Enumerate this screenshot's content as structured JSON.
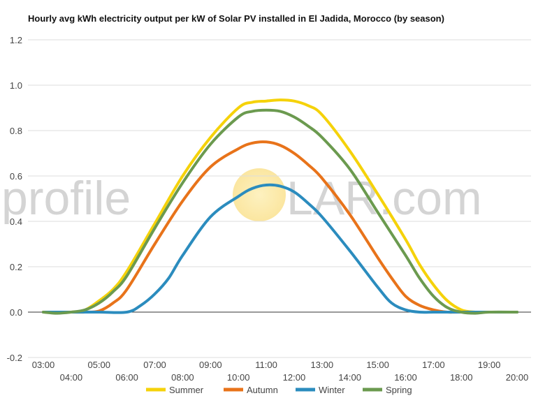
{
  "chart_data": {
    "type": "line",
    "title": "Hourly avg kWh electricity output per kW of Solar PV installed in El Jadida, Morocco (by season)",
    "xlabel": "",
    "ylabel": "",
    "ylim": [
      -0.2,
      1.2
    ],
    "yticks": [
      "-0.2",
      "0.0",
      "0.2",
      "0.4",
      "0.6",
      "0.8",
      "1.0",
      "1.2"
    ],
    "x_tick_labels": [
      "03:00",
      "04:00",
      "05:00",
      "06:00",
      "07:00",
      "08:00",
      "09:00",
      "10:00",
      "11:00",
      "12:00",
      "13:00",
      "14:00",
      "15:00",
      "16:00",
      "17:00",
      "18:00",
      "19:00",
      "20:00"
    ],
    "grid": true,
    "legend_position": "bottom",
    "series": [
      {
        "name": "Summer",
        "color": "#f5d20a",
        "x": [
          3,
          4,
          4.5,
          5,
          5.5,
          6,
          7,
          8,
          9,
          10,
          10.5,
          11,
          11.5,
          12,
          12.5,
          13,
          14,
          15,
          16,
          16.5,
          17,
          17.5,
          18,
          18.5,
          19,
          20
        ],
        "values": [
          0,
          0,
          0.01,
          0.05,
          0.1,
          0.18,
          0.39,
          0.6,
          0.77,
          0.9,
          0.925,
          0.93,
          0.935,
          0.93,
          0.91,
          0.87,
          0.71,
          0.52,
          0.32,
          0.21,
          0.12,
          0.05,
          0.01,
          0,
          0,
          0
        ]
      },
      {
        "name": "Autumn",
        "color": "#e8731a",
        "x": [
          3,
          4,
          4.5,
          5,
          5.5,
          6,
          7,
          8,
          9,
          10,
          10.5,
          11,
          11.5,
          12,
          12.5,
          13,
          14,
          15,
          15.5,
          16,
          16.5,
          17,
          17.5,
          18,
          20
        ],
        "values": [
          0,
          0,
          0,
          0.005,
          0.04,
          0.1,
          0.3,
          0.49,
          0.64,
          0.72,
          0.745,
          0.75,
          0.735,
          0.7,
          0.65,
          0.59,
          0.43,
          0.24,
          0.15,
          0.07,
          0.03,
          0.01,
          0,
          0,
          0
        ]
      },
      {
        "name": "Winter",
        "color": "#2b8cbe",
        "x": [
          3,
          4,
          5,
          6,
          6.5,
          7,
          7.5,
          8,
          9,
          10,
          10.5,
          11,
          11.5,
          12,
          12.5,
          13,
          14,
          15,
          15.5,
          16,
          16.5,
          17,
          17.5,
          20
        ],
        "values": [
          0,
          0,
          0,
          0,
          0.03,
          0.08,
          0.15,
          0.25,
          0.42,
          0.51,
          0.545,
          0.56,
          0.555,
          0.53,
          0.48,
          0.42,
          0.27,
          0.11,
          0.04,
          0.01,
          0,
          0,
          0,
          0
        ]
      },
      {
        "name": "Spring",
        "color": "#6b9a4f",
        "x": [
          3,
          3.5,
          4,
          4.5,
          5,
          5.5,
          6,
          7,
          8,
          9,
          10,
          10.5,
          11,
          11.5,
          12,
          12.5,
          13,
          14,
          15,
          16,
          16.5,
          17,
          17.5,
          18,
          18.5,
          19,
          20
        ],
        "values": [
          0,
          -0.005,
          0,
          0.01,
          0.04,
          0.09,
          0.16,
          0.37,
          0.57,
          0.74,
          0.86,
          0.885,
          0.89,
          0.885,
          0.86,
          0.82,
          0.77,
          0.63,
          0.44,
          0.25,
          0.15,
          0.07,
          0.02,
          0,
          -0.005,
          0,
          0
        ]
      }
    ]
  },
  "watermark": {
    "left_text": "profile",
    "right_text": "LAR.com",
    "sun_color": "#fbe9a6"
  }
}
